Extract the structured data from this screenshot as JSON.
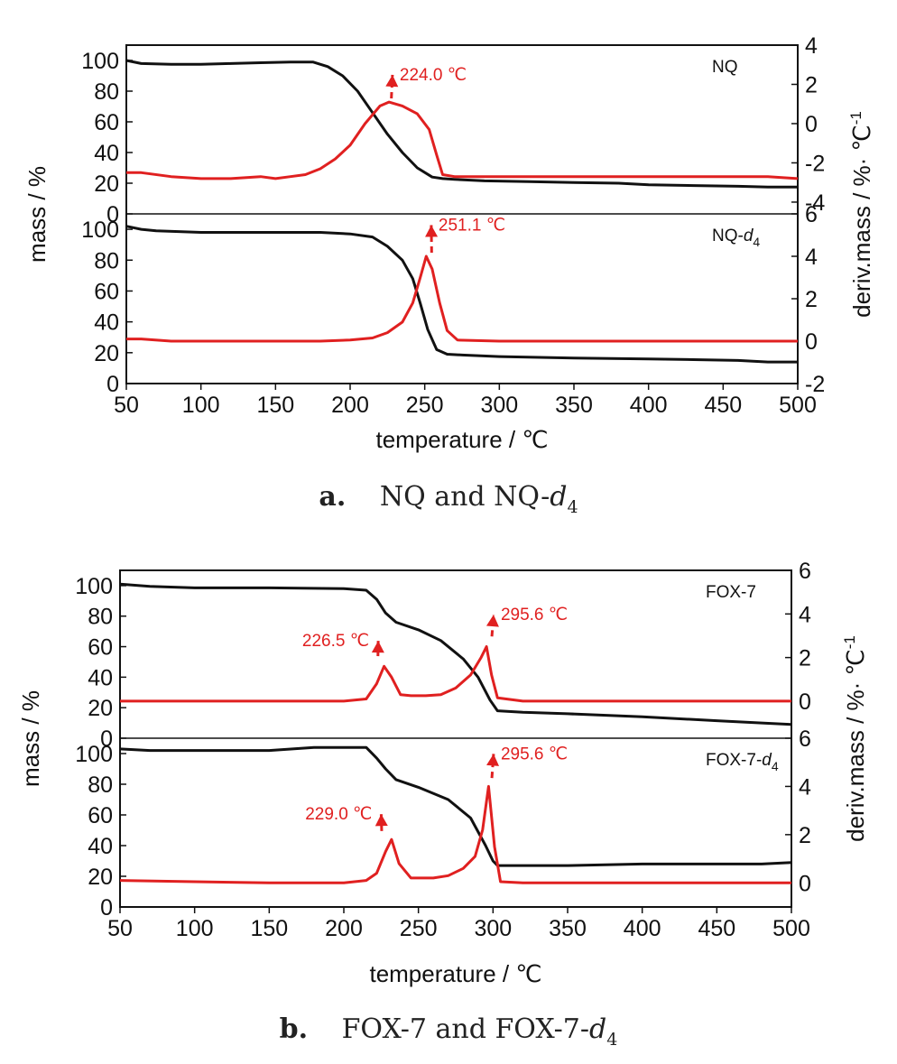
{
  "figure": {
    "colors": {
      "mass": "#111111",
      "deriv": "#e02020",
      "axis": "#111111"
    },
    "captions": [
      {
        "letter": "a.",
        "text": "NQ and NQ-",
        "italic": "d",
        "sub": "4"
      },
      {
        "letter": "b.",
        "text": "FOX-7 and FOX-7-",
        "italic": "d",
        "sub": "4"
      }
    ]
  },
  "chart_data": [
    {
      "type": "line",
      "id": "a",
      "x_label": "temperature / ℃",
      "y_label_left": "mass / %",
      "y_label_right": "deriv.mass / %· ℃",
      "y_label_right_sup": "-1",
      "xlim": [
        50,
        500
      ],
      "x_ticks": [
        50,
        100,
        150,
        200,
        250,
        300,
        350,
        400,
        450,
        500
      ],
      "panels": [
        {
          "name": "NQ",
          "name_sub": "",
          "mass_ylim": [
            0,
            110
          ],
          "mass_ticks": [
            0,
            20,
            40,
            60,
            80,
            100
          ],
          "deriv_ylim": [
            -4.6,
            4
          ],
          "deriv_ticks": [
            -4,
            -2,
            0,
            2,
            4
          ],
          "series": [
            {
              "axis": "left",
              "color": "#111111",
              "x": [
                50,
                60,
                80,
                100,
                120,
                140,
                160,
                175,
                185,
                195,
                205,
                215,
                225,
                235,
                245,
                255,
                262,
                270,
                290,
                320,
                350,
                380,
                400,
                430,
                460,
                480,
                500
              ],
              "y": [
                100,
                98,
                97.5,
                97.5,
                98,
                98.5,
                99,
                99,
                96,
                90,
                80,
                66,
                52,
                40,
                30,
                24,
                23,
                22.5,
                21.5,
                21,
                20.5,
                20,
                19,
                18.5,
                18,
                17.5,
                17.5
              ]
            },
            {
              "axis": "right",
              "color": "#e02020",
              "x": [
                50,
                60,
                80,
                100,
                120,
                140,
                150,
                160,
                170,
                180,
                190,
                200,
                210,
                220,
                226,
                235,
                245,
                253,
                258,
                262,
                270,
                300,
                330,
                360,
                400,
                430,
                460,
                480,
                500
              ],
              "y": [
                -2.5,
                -2.5,
                -2.7,
                -2.8,
                -2.8,
                -2.7,
                -2.8,
                -2.7,
                -2.6,
                -2.3,
                -1.8,
                -1.1,
                0,
                0.9,
                1.1,
                0.9,
                0.5,
                -0.3,
                -1.6,
                -2.6,
                -2.7,
                -2.7,
                -2.7,
                -2.7,
                -2.7,
                -2.7,
                -2.7,
                -2.7,
                -2.8
              ]
            }
          ],
          "annotations": [
            {
              "label": "224.0 ℃",
              "peak_x": 224,
              "peak_y": 1.1,
              "text_x": 232,
              "text_y": 2.3
            }
          ]
        },
        {
          "name": "NQ-",
          "name_sub": "4",
          "mass_ylim": [
            0,
            110
          ],
          "mass_ticks": [
            0,
            20,
            40,
            60,
            80,
            100
          ],
          "deriv_ylim": [
            -2,
            6
          ],
          "deriv_ticks": [
            -2,
            0,
            2,
            4,
            6
          ],
          "series": [
            {
              "axis": "left",
              "color": "#111111",
              "x": [
                50,
                60,
                70,
                100,
                150,
                180,
                200,
                215,
                225,
                235,
                242,
                247,
                252,
                258,
                265,
                275,
                300,
                350,
                400,
                430,
                460,
                480,
                500
              ],
              "y": [
                102,
                100,
                99,
                98,
                98,
                98,
                97,
                95,
                89,
                80,
                68,
                52,
                35,
                22,
                19,
                18.5,
                17.5,
                16.5,
                16,
                15.5,
                15,
                14,
                14
              ]
            },
            {
              "axis": "right",
              "color": "#e02020",
              "x": [
                50,
                60,
                80,
                100,
                150,
                180,
                200,
                215,
                225,
                235,
                242,
                247,
                251,
                255,
                260,
                265,
                272,
                300,
                350,
                400,
                450,
                500
              ],
              "y": [
                0.1,
                0.1,
                0,
                0,
                0,
                0,
                0.05,
                0.15,
                0.4,
                0.9,
                1.8,
                3,
                4.0,
                3.4,
                1.8,
                0.5,
                0.05,
                0,
                0,
                0,
                0,
                0
              ]
            }
          ],
          "annotations": [
            {
              "label": "251.1 ℃",
              "peak_x": 251,
              "peak_y": 4.0,
              "text_x": 258,
              "text_y": 5.3
            }
          ]
        }
      ]
    },
    {
      "type": "line",
      "id": "b",
      "x_label": "temperature / ℃",
      "y_label_left": "mass / %",
      "y_label_right": "deriv.mass / %· ℃",
      "y_label_right_sup": "-1",
      "xlim": [
        50,
        500
      ],
      "x_ticks": [
        50,
        100,
        150,
        200,
        250,
        300,
        350,
        400,
        450,
        500
      ],
      "panels": [
        {
          "name": "FOX-7",
          "name_sub": "",
          "mass_ylim": [
            0,
            110
          ],
          "mass_ticks": [
            0,
            20,
            40,
            60,
            80,
            100
          ],
          "deriv_ylim": [
            -1.7,
            6
          ],
          "deriv_ticks": [
            0,
            2,
            4,
            6
          ],
          "series": [
            {
              "axis": "left",
              "color": "#111111",
              "x": [
                50,
                70,
                100,
                150,
                200,
                215,
                222,
                228,
                235,
                250,
                265,
                280,
                290,
                298,
                303,
                320,
                350,
                400,
                450,
                480,
                500
              ],
              "y": [
                101,
                99.5,
                98.5,
                98.5,
                98,
                97,
                91,
                82,
                76,
                71,
                64,
                52,
                40,
                25,
                18,
                17,
                16,
                14,
                11.5,
                10,
                9
              ]
            },
            {
              "axis": "right",
              "color": "#e02020",
              "x": [
                50,
                100,
                150,
                200,
                215,
                222,
                227,
                232,
                238,
                245,
                255,
                265,
                275,
                285,
                292,
                295.6,
                299,
                303,
                320,
                400,
                500
              ],
              "y": [
                0,
                0,
                0,
                0,
                0.1,
                0.8,
                1.6,
                1.1,
                0.3,
                0.25,
                0.25,
                0.3,
                0.6,
                1.2,
                2.0,
                2.5,
                1.2,
                0.15,
                0,
                0,
                0
              ]
            }
          ],
          "annotations": [
            {
              "label": "226.5 ℃",
              "peak_x": 226.5,
              "peak_y": 1.9,
              "text_x": 217,
              "text_y": 2.6,
              "side": "left"
            },
            {
              "label": "295.6 ℃",
              "peak_x": 295.6,
              "peak_y": 2.8,
              "text_x": 304,
              "text_y": 3.8,
              "side": "right"
            }
          ]
        },
        {
          "name": "FOX-7-",
          "name_sub": "4",
          "mass_ylim": [
            0,
            110
          ],
          "mass_ticks": [
            0,
            20,
            40,
            60,
            80,
            100
          ],
          "deriv_ylim": [
            -1,
            6
          ],
          "deriv_ticks": [
            0,
            2,
            4,
            6
          ],
          "series": [
            {
              "axis": "left",
              "color": "#111111",
              "x": [
                50,
                70,
                100,
                150,
                180,
                200,
                215,
                222,
                228,
                235,
                250,
                270,
                285,
                295,
                300,
                303,
                320,
                350,
                400,
                450,
                480,
                500
              ],
              "y": [
                103,
                102,
                102,
                102,
                104,
                104,
                104,
                97,
                90,
                83,
                78,
                70,
                58,
                40,
                30,
                27,
                27,
                27,
                28,
                28,
                28,
                29
              ]
            },
            {
              "axis": "right",
              "color": "#e02020",
              "x": [
                50,
                100,
                150,
                200,
                215,
                222,
                228,
                232,
                237,
                245,
                260,
                270,
                280,
                288,
                293,
                297,
                301,
                305,
                320,
                400,
                500
              ],
              "y": [
                0.1,
                0.05,
                0,
                0,
                0.1,
                0.4,
                1.3,
                1.8,
                0.8,
                0.2,
                0.2,
                0.3,
                0.6,
                1.1,
                2.2,
                4.0,
                1.5,
                0.05,
                0,
                0,
                0
              ]
            }
          ],
          "annotations": [
            {
              "label": "229.0 ℃",
              "peak_x": 229,
              "peak_y": 2.0,
              "text_x": 219,
              "text_y": 2.7,
              "side": "left"
            },
            {
              "label": "295.6 ℃",
              "peak_x": 295.6,
              "peak_y": 4.2,
              "text_x": 304,
              "text_y": 5.2,
              "side": "right"
            }
          ]
        }
      ]
    }
  ]
}
